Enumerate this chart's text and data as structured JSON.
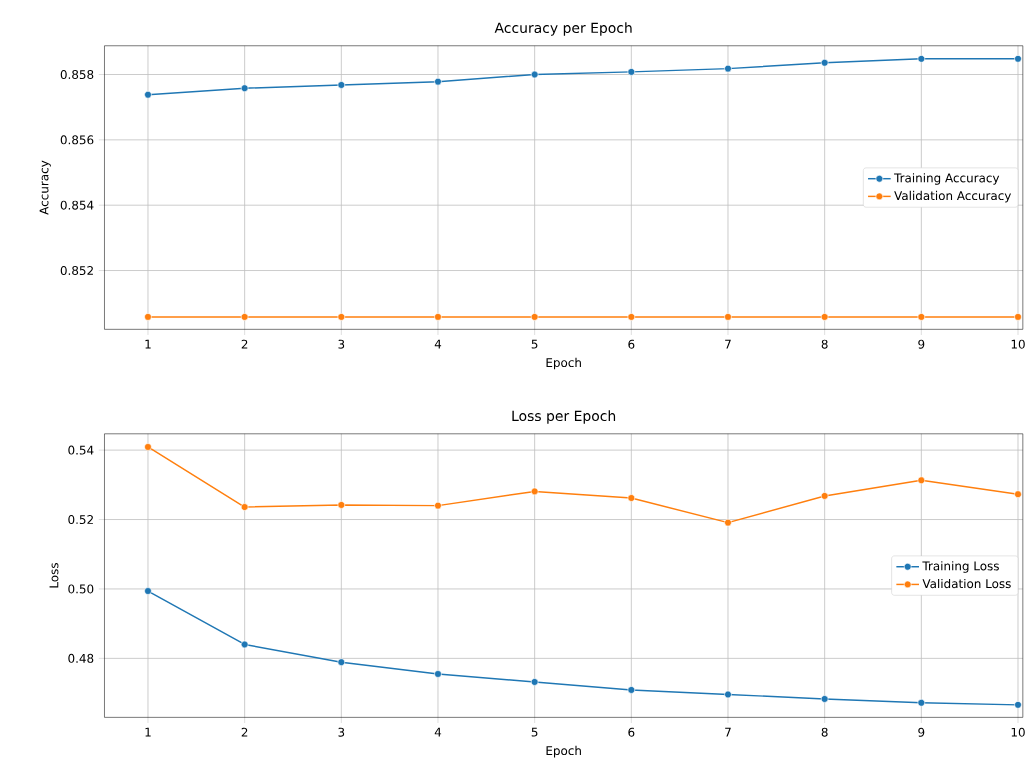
{
  "chart_data": [
    {
      "type": "line",
      "title": "Accuracy per Epoch",
      "xlabel": "Epoch",
      "ylabel": "Accuracy",
      "x": [
        1,
        2,
        3,
        4,
        5,
        6,
        7,
        8,
        9,
        10
      ],
      "series": [
        {
          "name": "Training Accuracy",
          "color": "#1f77b4",
          "values": [
            0.85738,
            0.85758,
            0.85768,
            0.85778,
            0.858,
            0.85808,
            0.85818,
            0.85836,
            0.85848,
            0.85848
          ]
        },
        {
          "name": "Validation Accuracy",
          "color": "#ff7f0e",
          "values": [
            0.85058,
            0.85058,
            0.85058,
            0.85058,
            0.85058,
            0.85058,
            0.85058,
            0.85058,
            0.85058,
            0.85058
          ]
        }
      ],
      "xlim": [
        0.55,
        10.05
      ],
      "ylim": [
        0.8502,
        0.85888
      ],
      "xticks": [
        1,
        2,
        3,
        4,
        5,
        6,
        7,
        8,
        9,
        10
      ],
      "yticks": [
        0.852,
        0.854,
        0.856,
        0.858
      ],
      "grid": true,
      "legend": "right",
      "marker": "circle",
      "line_style": "solid"
    },
    {
      "type": "line",
      "title": "Loss per Epoch",
      "xlabel": "Epoch",
      "ylabel": "Loss",
      "x": [
        1,
        2,
        3,
        4,
        5,
        6,
        7,
        8,
        9,
        10
      ],
      "series": [
        {
          "name": "Training Loss",
          "color": "#1f77b4",
          "values": [
            0.4994,
            0.484,
            0.4789,
            0.4755,
            0.4732,
            0.4709,
            0.4696,
            0.4683,
            0.4672,
            0.4666
          ]
        },
        {
          "name": "Validation Loss",
          "color": "#ff7f0e",
          "values": [
            0.5409,
            0.5236,
            0.5242,
            0.524,
            0.5281,
            0.5262,
            0.5191,
            0.5268,
            0.5313,
            0.5273
          ]
        }
      ],
      "xlim": [
        0.55,
        10.05
      ],
      "ylim": [
        0.463,
        0.5447
      ],
      "xticks": [
        1,
        2,
        3,
        4,
        5,
        6,
        7,
        8,
        9,
        10
      ],
      "yticks": [
        0.48,
        {
          "value": 0.5,
          "label": "0.50"
        },
        0.52,
        0.54
      ],
      "grid": true,
      "legend": "right",
      "marker": "circle",
      "line_style": "solid"
    }
  ]
}
